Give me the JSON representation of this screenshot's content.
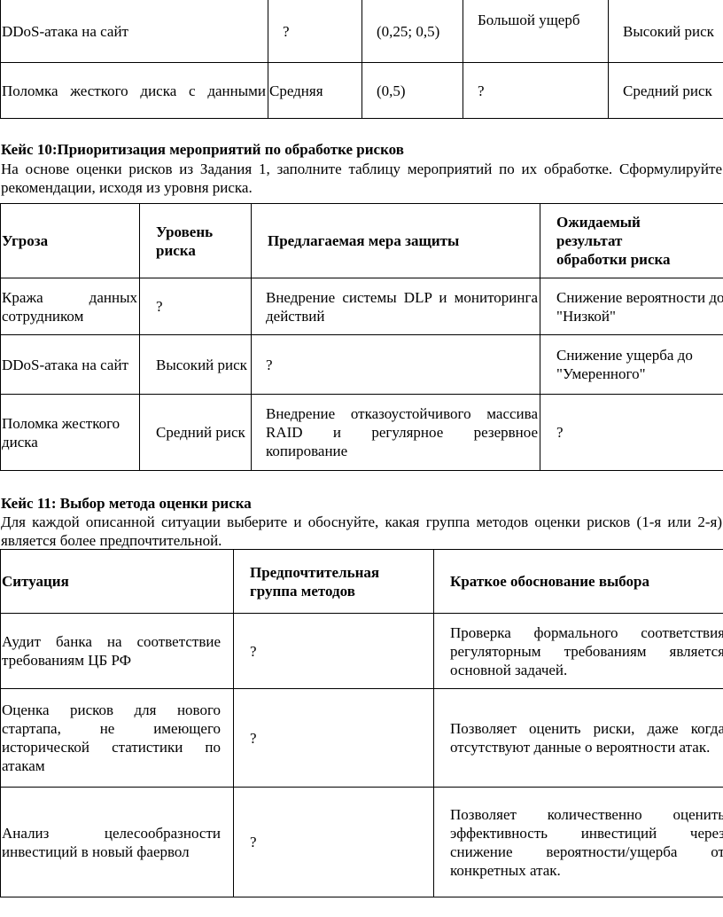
{
  "table1": {
    "rows": [
      [
        "DDoS-атака на сайт",
        "?",
        "(0,25; 0,5)",
        "Большой ущерб",
        "Высокий риск"
      ],
      [
        "Поломка жесткого диска с данными",
        "Средняя",
        "(0,5)",
        "?",
        "Средний риск"
      ]
    ]
  },
  "case10": {
    "title": "Кейс 10:Приоритизация мероприятий по обработке рисков",
    "text": "На основе оценки рисков из Задания 1, заполните таблицу мероприятий по их обработке. Сформулируйте рекомендации, исходя из уровня риска.",
    "headers": [
      "Угроза",
      "Уровень риска",
      "Предлагаемая мера защиты",
      "Ожидаемый результат обработки риска"
    ],
    "rows": [
      [
        "Кража данных сотрудником",
        "?",
        "Внедрение системы DLP и мониторинга действий",
        "Снижение вероятности до \"Низкой\""
      ],
      [
        "DDoS-атака на сайт",
        "Высокий риск",
        "?",
        "Снижение ущерба до \"Умеренного\""
      ],
      [
        "Поломка жесткого диска",
        "Средний риск",
        "Внедрение отказоустойчивого массива RAID и регулярное резервное копирование",
        "?"
      ]
    ]
  },
  "case11": {
    "title": "Кейс 11: Выбор метода оценки риска",
    "text": "Для каждой описанной ситуации выберите и обоснуйте, какая группа методов оценки рисков (1-я или 2-я) является более предпочтительной.",
    "headers": [
      "Ситуация",
      "Предпочтительная группа методов",
      "Краткое обоснование выбора"
    ],
    "rows": [
      [
        "Аудит банка на соответствие требованиям ЦБ РФ",
        "?",
        "Проверка формального соответствия регуляторным требованиям является основной задачей."
      ],
      [
        "Оценка рисков для нового стартапа, не имеющего исторической статистики по атакам",
        "?",
        "Позволяет оценить риски, даже когда отсутствуют данные о вероятности атак."
      ],
      [
        "Анализ целесообразности инвестиций в новый фаервол",
        "?",
        "Позволяет количественно оценить эффективность инвестиций через снижение вероятности/ущерба от конкретных атак."
      ]
    ]
  }
}
